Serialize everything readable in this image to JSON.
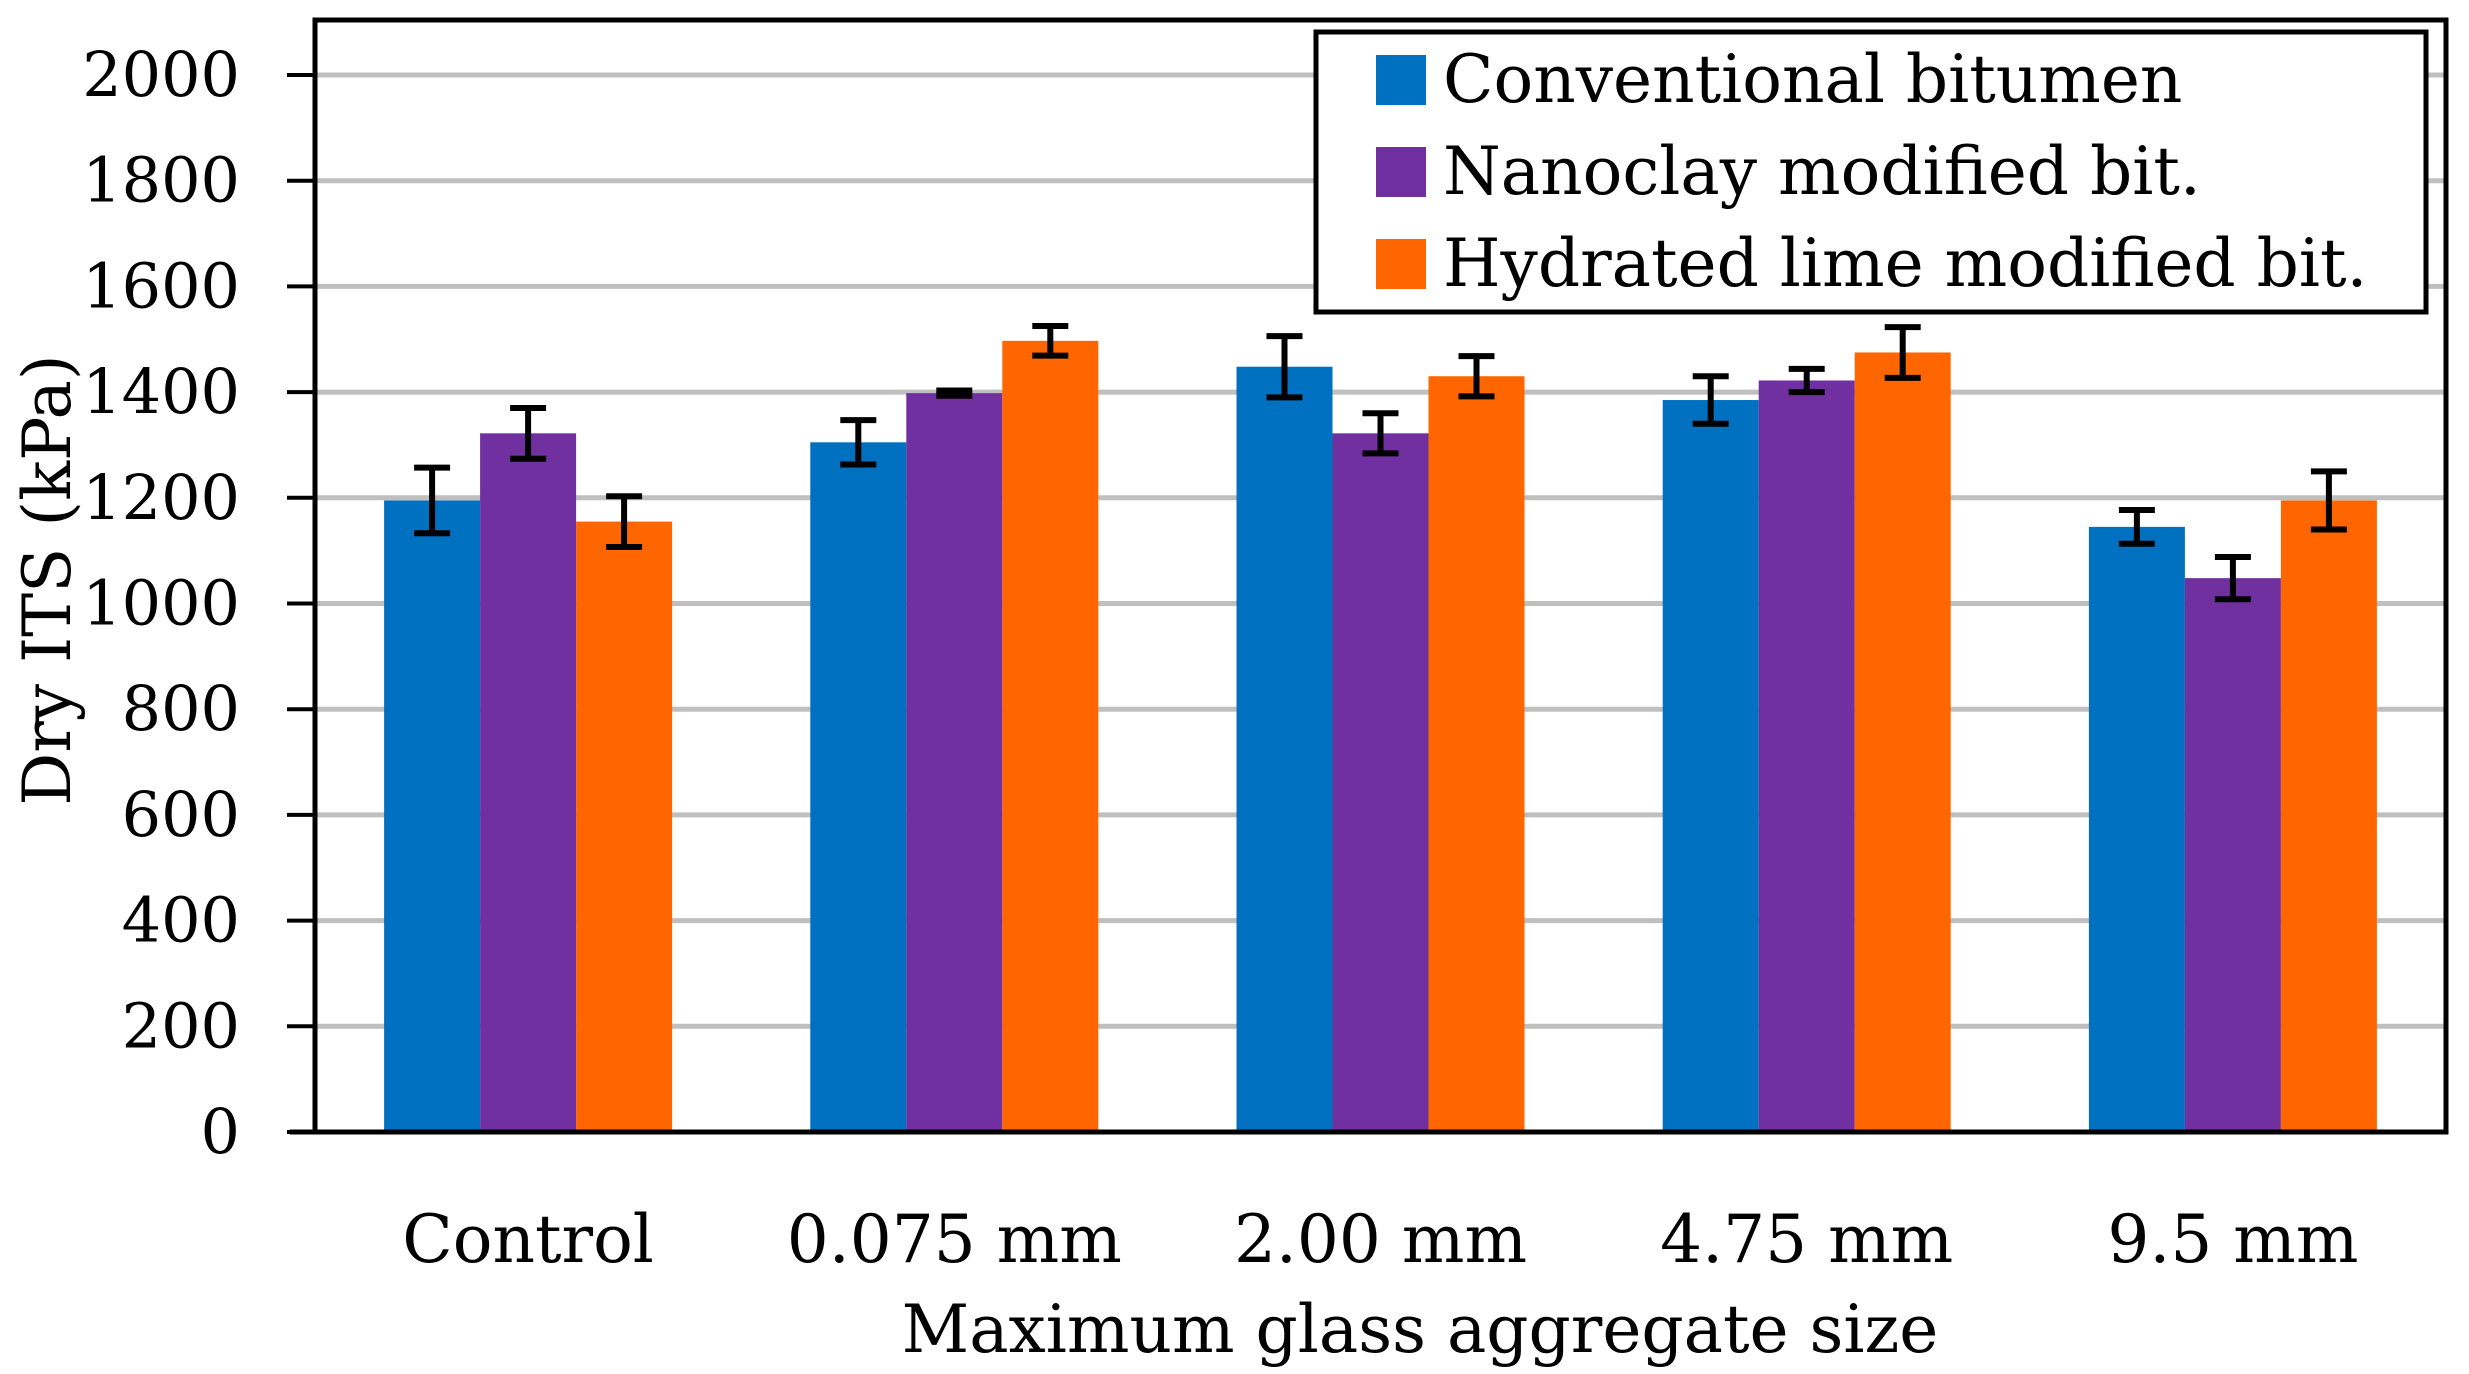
{
  "chart_data": {
    "type": "bar",
    "title": "",
    "xlabel": "Maximum glass aggregate size",
    "ylabel": "Dry ITS (kPa)",
    "ylim": [
      0,
      2000
    ],
    "yticks": [
      0,
      200,
      400,
      600,
      800,
      1000,
      1200,
      1400,
      1600,
      1800,
      2000
    ],
    "grid": true,
    "legend_position": "top-right",
    "categories": [
      "Control",
      "0.075 mm",
      "2.00 mm",
      "4.75 mm",
      "9.5 mm"
    ],
    "series": [
      {
        "name": "Conventional bitumen",
        "color": "#0070c0",
        "values": [
          1195,
          1305,
          1448,
          1385,
          1145
        ],
        "errors": [
          62,
          42,
          58,
          45,
          32
        ]
      },
      {
        "name": "Nanoclay modified bit.",
        "color": "#7030a0",
        "values": [
          1322,
          1398,
          1322,
          1422,
          1048
        ],
        "errors": [
          48,
          5,
          38,
          22,
          40
        ]
      },
      {
        "name": "Hydrated lime modified bit.",
        "color": "#ff6600",
        "values": [
          1155,
          1497,
          1430,
          1475,
          1195
        ],
        "errors": [
          48,
          28,
          38,
          48,
          55
        ]
      }
    ]
  }
}
